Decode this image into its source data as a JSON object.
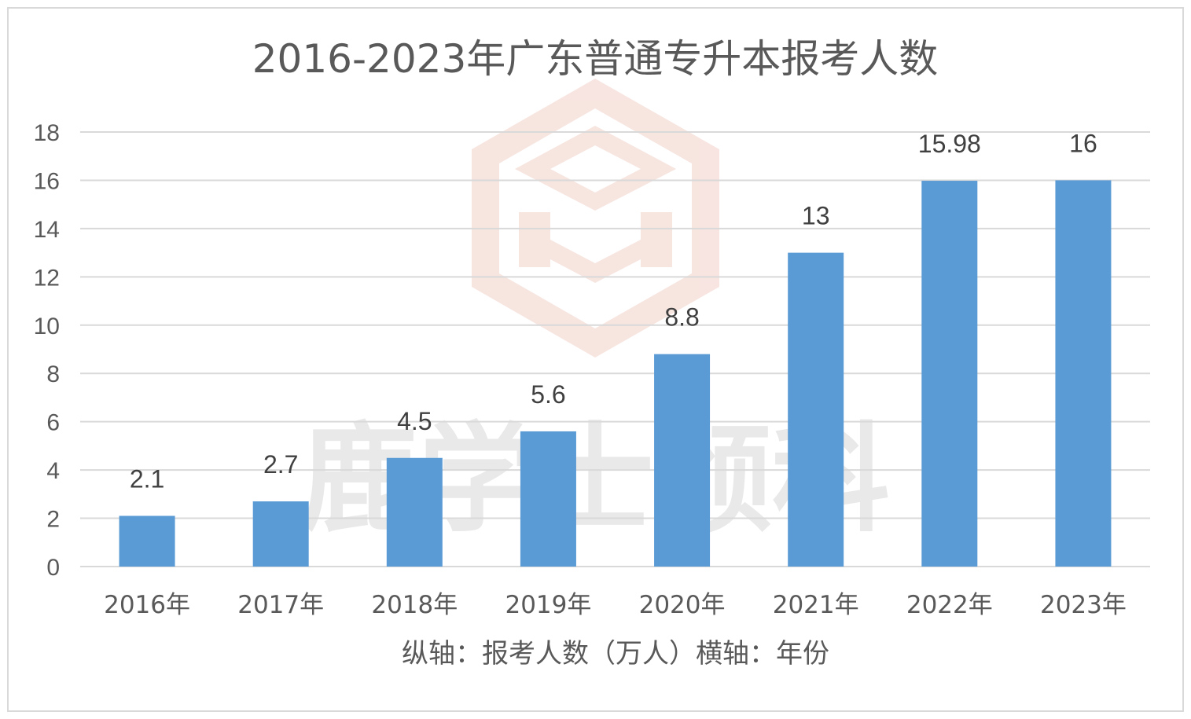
{
  "watermark": {
    "text": "鹿学士领科",
    "logo_color": "#f2c9c0",
    "text_color": "#cfcfcf"
  },
  "chart_data": {
    "type": "bar",
    "title": "2016-2023年广东普通专升本报考人数",
    "categories": [
      "2016年",
      "2017年",
      "2018年",
      "2019年",
      "2020年",
      "2021年",
      "2022年",
      "2023年"
    ],
    "series": [
      {
        "values": [
          2.1,
          2.7,
          4.5,
          5.6,
          8.8,
          13,
          15.98,
          16
        ],
        "labels": [
          "2.1",
          "2.7",
          "4.5",
          "5.6",
          "8.8",
          "13",
          "15.98",
          "16"
        ],
        "color": "#5b9bd5"
      }
    ],
    "ylim": [
      0,
      18
    ],
    "yticks": [
      0,
      2,
      4,
      6,
      8,
      10,
      12,
      14,
      16,
      18
    ],
    "ytick_labels": [
      "0",
      "2",
      "4",
      "6",
      "8",
      "10",
      "12",
      "14",
      "16",
      "18"
    ],
    "caption": "纵轴：报考人数（万人）横轴：年份",
    "grid": true,
    "grid_color": "#d9d9d9"
  }
}
